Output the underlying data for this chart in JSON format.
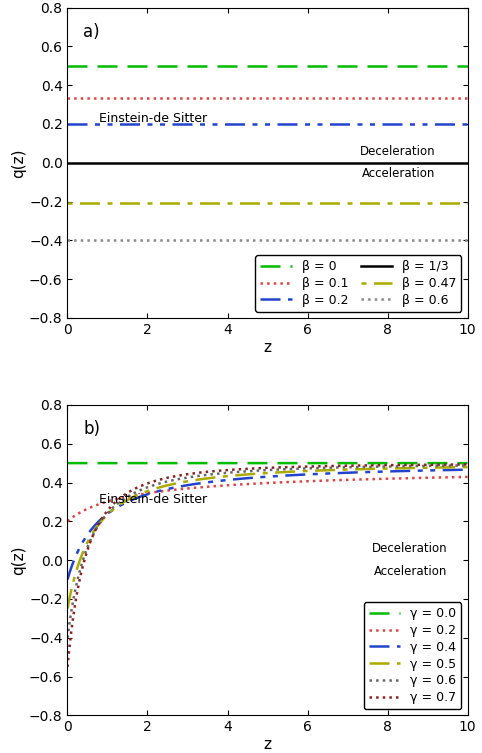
{
  "panel_a": {
    "label": "a)",
    "xlabel": "z",
    "ylabel": "q(z)",
    "xlim": [
      0,
      10
    ],
    "ylim": [
      -0.8,
      0.8
    ],
    "eds_label": "Einstein-de Sitter",
    "deceleration_label": "Deceleration",
    "acceleration_label": "Acceleration",
    "lines": [
      {
        "beta": 0.0,
        "q": 0.5,
        "color": "#00bb00",
        "linestyle": "dashed",
        "linewidth": 1.8,
        "label": "β = 0",
        "dashes": [
          8,
          4
        ]
      },
      {
        "beta": 0.1,
        "q": 0.333,
        "color": "#dd4444",
        "linestyle": "dotted",
        "linewidth": 1.8,
        "label": "β = 0.1",
        "dashes": null
      },
      {
        "beta": 0.2,
        "q": 0.2,
        "color": "#2244cc",
        "linestyle": "dashdot2",
        "linewidth": 1.8,
        "label": "β = 0.2",
        "dashes": [
          8,
          3,
          2,
          3,
          2,
          3
        ]
      },
      {
        "beta": 0.3333,
        "q": 0.0,
        "color": "#000000",
        "linestyle": "solid",
        "linewidth": 1.8,
        "label": "β = 1/3",
        "dashes": null
      },
      {
        "beta": 0.47,
        "q": -0.205,
        "color": "#aaaa00",
        "linestyle": "dotted2",
        "linewidth": 1.8,
        "label": "β = 0.47",
        "dashes": [
          2,
          3,
          8,
          3
        ]
      },
      {
        "beta": 0.6,
        "q": -0.4,
        "color": "#888888",
        "linestyle": "dotted",
        "linewidth": 1.8,
        "label": "β = 0.6",
        "dashes": null
      }
    ]
  },
  "panel_b": {
    "label": "b)",
    "xlabel": "z",
    "ylabel": "q(z)",
    "xlim": [
      0,
      10
    ],
    "ylim": [
      -0.8,
      0.8
    ],
    "eds_label": "Einstein-de Sitter",
    "deceleration_label": "Deceleration",
    "acceleration_label": "Acceleration",
    "lines": [
      {
        "gamma": 0.0,
        "color": "#00bb00",
        "linestyle": "dashed",
        "linewidth": 1.8,
        "label": "γ = 0.0",
        "dashes": [
          8,
          4
        ]
      },
      {
        "gamma": 0.2,
        "color": "#dd4444",
        "linestyle": "dotted",
        "linewidth": 1.8,
        "label": "γ = 0.2",
        "dashes": null
      },
      {
        "gamma": 0.4,
        "color": "#2244cc",
        "linestyle": "dashdot2",
        "linewidth": 1.8,
        "label": "γ = 0.4",
        "dashes": [
          8,
          3,
          2,
          3,
          2,
          3
        ]
      },
      {
        "gamma": 0.5,
        "color": "#aaaa00",
        "linestyle": "dashdot",
        "linewidth": 1.8,
        "label": "γ = 0.5",
        "dashes": [
          8,
          3,
          2,
          3
        ]
      },
      {
        "gamma": 0.6,
        "color": "#666666",
        "linestyle": "dotted",
        "linewidth": 1.8,
        "label": "γ = 0.6",
        "dashes": [
          2,
          4
        ]
      },
      {
        "gamma": 0.7,
        "color": "#882222",
        "linestyle": "dotted",
        "linewidth": 1.8,
        "label": "γ = 0.7",
        "dashes": [
          2,
          2
        ]
      }
    ]
  },
  "xticks": [
    0,
    2,
    4,
    6,
    8,
    10
  ],
  "yticks": [
    -0.8,
    -0.6,
    -0.4,
    -0.2,
    0.0,
    0.2,
    0.4,
    0.6,
    0.8
  ],
  "tick_fontsize": 10,
  "label_fontsize": 11,
  "annotation_fontsize": 9,
  "panel_label_fontsize": 12,
  "legend_fontsize": 9
}
